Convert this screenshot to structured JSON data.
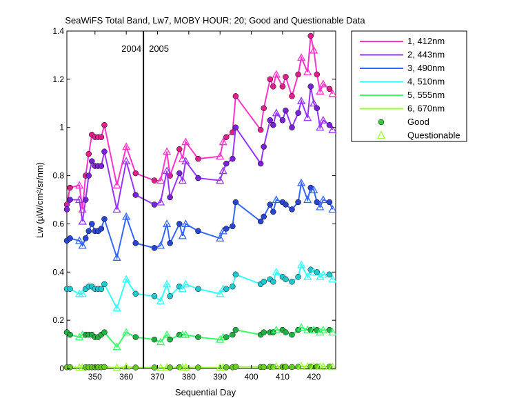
{
  "chart_data": {
    "type": "line",
    "title": "SeaWiFS Total Band,  Lw7, MOBY HOUR: 20;  Good and Questionable Data",
    "xlabel": "Sequential Day",
    "ylabel": "Lw (µW/cm²/sr/nm)",
    "xlim": [
      341,
      427
    ],
    "ylim": [
      0,
      1.4
    ],
    "xticks": [
      350,
      360,
      370,
      380,
      390,
      400,
      410,
      420
    ],
    "yticks": [
      0,
      0.2,
      0.4,
      0.6,
      0.8,
      1,
      1.2,
      1.4
    ],
    "ytick_labels": [
      "0",
      "0.2",
      "0.4",
      "0.6",
      "0.8",
      "1",
      "1.2",
      "1.4"
    ],
    "grid": false,
    "legend_position": "outside-right",
    "year_divider": {
      "x": 365.5,
      "labels": [
        "2004",
        "2005"
      ]
    },
    "legend_markers": {
      "good": "Good",
      "questionable": "Questionable",
      "good_color": "#33cc33",
      "questionable_color": "#99ff33"
    },
    "series": [
      {
        "name": "1, 412nm",
        "color": "#ff33cc",
        "marker_color": "#e0208a",
        "x": [
          341,
          342,
          345,
          346,
          347,
          348,
          349,
          350,
          351,
          352,
          353,
          357,
          360,
          363,
          369,
          371,
          373,
          374,
          377,
          378,
          379,
          383,
          390,
          391,
          392,
          394,
          395,
          403,
          404,
          406,
          407,
          408,
          410,
          411,
          413,
          415,
          416,
          418,
          419,
          420,
          421,
          422,
          423,
          425,
          426
        ],
        "y": [
          0.68,
          0.75,
          0.76,
          0.66,
          0.8,
          0.89,
          0.97,
          0.96,
          0.96,
          0.96,
          1.01,
          0.76,
          0.92,
          0.81,
          0.78,
          0.78,
          0.9,
          0.8,
          0.91,
          0.87,
          0.94,
          0.87,
          0.88,
          0.94,
          0.96,
          0.98,
          1.13,
          0.99,
          1.08,
          1.2,
          1.17,
          1.22,
          1.17,
          1.21,
          1.13,
          1.22,
          1.29,
          1.23,
          1.38,
          1.32,
          1.22,
          1.15,
          1.18,
          1.16,
          1.14
        ],
        "q": [
          0,
          0,
          1,
          1,
          0,
          0,
          0,
          0,
          0,
          0,
          0,
          1,
          1,
          0,
          0,
          1,
          1,
          0,
          0,
          1,
          1,
          0,
          1,
          1,
          0,
          0,
          0,
          0,
          0,
          0,
          0,
          1,
          0,
          0,
          0,
          0,
          1,
          1,
          0,
          1,
          0,
          1,
          1,
          0,
          1
        ]
      },
      {
        "name": "2, 443nm",
        "color": "#9933ff",
        "marker_color": "#7a22d8",
        "x": [
          341,
          342,
          345,
          346,
          347,
          348,
          349,
          350,
          351,
          352,
          353,
          357,
          360,
          363,
          369,
          371,
          373,
          374,
          377,
          378,
          379,
          383,
          390,
          391,
          392,
          394,
          395,
          403,
          404,
          406,
          407,
          408,
          410,
          411,
          413,
          415,
          416,
          418,
          419,
          420,
          421,
          422,
          423,
          425,
          426
        ],
        "y": [
          0.66,
          0.7,
          0.7,
          0.61,
          0.7,
          0.8,
          0.86,
          0.84,
          0.84,
          0.84,
          0.9,
          0.66,
          0.86,
          0.72,
          0.68,
          0.69,
          0.82,
          0.71,
          0.81,
          0.78,
          0.86,
          0.79,
          0.78,
          0.82,
          0.85,
          0.87,
          1.0,
          0.85,
          0.92,
          1.03,
          1.01,
          1.06,
          1.03,
          1.07,
          1.0,
          1.06,
          1.11,
          1.04,
          1.17,
          1.1,
          1.08,
          1.0,
          1.03,
          1.01,
          0.99
        ],
        "q": [
          0,
          0,
          1,
          1,
          0,
          0,
          0,
          0,
          0,
          0,
          0,
          1,
          1,
          0,
          0,
          1,
          1,
          0,
          0,
          1,
          1,
          0,
          1,
          1,
          0,
          0,
          0,
          0,
          0,
          0,
          0,
          1,
          0,
          0,
          0,
          0,
          1,
          1,
          0,
          1,
          0,
          1,
          1,
          0,
          1
        ]
      },
      {
        "name": "3, 490nm",
        "color": "#3366ff",
        "marker_color": "#2a45d0",
        "x": [
          341,
          342,
          345,
          346,
          347,
          348,
          349,
          350,
          351,
          352,
          353,
          357,
          360,
          363,
          369,
          371,
          373,
          374,
          377,
          378,
          379,
          383,
          390,
          391,
          392,
          394,
          395,
          403,
          404,
          406,
          407,
          408,
          410,
          411,
          413,
          415,
          416,
          418,
          419,
          420,
          421,
          422,
          423,
          425,
          426
        ],
        "y": [
          0.53,
          0.54,
          0.53,
          0.51,
          0.54,
          0.57,
          0.6,
          0.57,
          0.57,
          0.58,
          0.62,
          0.46,
          0.63,
          0.52,
          0.5,
          0.51,
          0.6,
          0.52,
          0.6,
          0.55,
          0.6,
          0.57,
          0.54,
          0.57,
          0.58,
          0.59,
          0.69,
          0.61,
          0.63,
          0.68,
          0.65,
          0.7,
          0.69,
          0.68,
          0.66,
          0.69,
          0.77,
          0.7,
          0.75,
          0.74,
          0.69,
          0.67,
          0.7,
          0.69,
          0.66
        ],
        "q": [
          0,
          0,
          1,
          1,
          0,
          0,
          0,
          0,
          0,
          0,
          0,
          1,
          1,
          0,
          0,
          1,
          1,
          0,
          0,
          1,
          1,
          0,
          1,
          1,
          0,
          0,
          0,
          0,
          0,
          0,
          0,
          1,
          0,
          0,
          0,
          0,
          1,
          1,
          0,
          1,
          0,
          1,
          1,
          0,
          1
        ]
      },
      {
        "name": "4, 510nm",
        "color": "#33ffff",
        "marker_color": "#22c8d0",
        "x": [
          341,
          342,
          345,
          346,
          347,
          348,
          349,
          350,
          351,
          352,
          353,
          357,
          360,
          363,
          369,
          371,
          373,
          374,
          377,
          378,
          379,
          383,
          390,
          391,
          392,
          394,
          395,
          403,
          404,
          406,
          407,
          408,
          410,
          411,
          413,
          415,
          416,
          418,
          419,
          420,
          421,
          422,
          423,
          425,
          426
        ],
        "y": [
          0.33,
          0.33,
          0.31,
          0.31,
          0.33,
          0.34,
          0.34,
          0.33,
          0.33,
          0.33,
          0.35,
          0.25,
          0.37,
          0.31,
          0.3,
          0.28,
          0.35,
          0.3,
          0.34,
          0.33,
          0.35,
          0.33,
          0.31,
          0.33,
          0.33,
          0.34,
          0.39,
          0.35,
          0.36,
          0.37,
          0.36,
          0.4,
          0.38,
          0.37,
          0.36,
          0.38,
          0.43,
          0.38,
          0.41,
          0.4,
          0.4,
          0.38,
          0.39,
          0.39,
          0.37
        ],
        "q": [
          0,
          0,
          1,
          1,
          0,
          0,
          0,
          0,
          0,
          0,
          0,
          1,
          1,
          0,
          0,
          1,
          1,
          0,
          0,
          1,
          1,
          0,
          1,
          1,
          0,
          0,
          0,
          0,
          0,
          0,
          0,
          1,
          0,
          0,
          0,
          0,
          1,
          1,
          0,
          1,
          0,
          1,
          1,
          0,
          1
        ]
      },
      {
        "name": "5, 555nm",
        "color": "#33ff66",
        "marker_color": "#22b044",
        "x": [
          341,
          342,
          345,
          346,
          347,
          348,
          349,
          350,
          351,
          352,
          353,
          357,
          360,
          363,
          369,
          371,
          373,
          374,
          377,
          378,
          379,
          383,
          390,
          391,
          392,
          394,
          395,
          403,
          404,
          406,
          407,
          408,
          410,
          411,
          413,
          415,
          416,
          418,
          419,
          420,
          421,
          422,
          423,
          425,
          426
        ],
        "y": [
          0.15,
          0.14,
          0.13,
          0.14,
          0.14,
          0.14,
          0.14,
          0.13,
          0.13,
          0.14,
          0.15,
          0.09,
          0.15,
          0.13,
          0.12,
          0.11,
          0.14,
          0.12,
          0.14,
          0.14,
          0.14,
          0.13,
          0.12,
          0.13,
          0.13,
          0.14,
          0.16,
          0.14,
          0.15,
          0.15,
          0.15,
          0.16,
          0.16,
          0.15,
          0.14,
          0.16,
          0.17,
          0.16,
          0.16,
          0.16,
          0.16,
          0.15,
          0.16,
          0.16,
          0.15
        ],
        "q": [
          0,
          0,
          1,
          1,
          0,
          0,
          0,
          0,
          0,
          0,
          0,
          1,
          1,
          0,
          0,
          1,
          1,
          0,
          0,
          1,
          1,
          0,
          1,
          1,
          0,
          0,
          0,
          0,
          0,
          0,
          0,
          1,
          0,
          0,
          0,
          0,
          1,
          1,
          0,
          1,
          0,
          1,
          1,
          0,
          1
        ]
      },
      {
        "name": "6, 670nm",
        "color": "#99ff33",
        "marker_color": "#66cc22",
        "x": [
          341,
          342,
          345,
          346,
          347,
          348,
          349,
          350,
          351,
          352,
          353,
          357,
          360,
          363,
          369,
          371,
          373,
          374,
          377,
          378,
          379,
          383,
          390,
          391,
          392,
          394,
          395,
          403,
          404,
          406,
          407,
          408,
          410,
          411,
          413,
          415,
          416,
          418,
          419,
          420,
          421,
          422,
          423,
          425,
          426
        ],
        "y": [
          0.005,
          0.005,
          0.004,
          0.004,
          0.005,
          0.005,
          0.005,
          0.005,
          0.005,
          0.005,
          0.006,
          0.003,
          0.007,
          0.004,
          0.004,
          0.003,
          0.005,
          0.004,
          0.005,
          0.005,
          0.005,
          0.004,
          0.004,
          0.005,
          0.005,
          0.005,
          0.007,
          0.006,
          0.006,
          0.007,
          0.006,
          0.008,
          0.007,
          0.007,
          0.006,
          0.007,
          0.009,
          0.008,
          0.008,
          0.008,
          0.008,
          0.007,
          0.008,
          0.008,
          0.007
        ],
        "q": [
          0,
          0,
          1,
          1,
          0,
          0,
          0,
          0,
          0,
          0,
          0,
          1,
          1,
          0,
          0,
          1,
          1,
          0,
          0,
          1,
          1,
          0,
          1,
          1,
          0,
          0,
          0,
          0,
          0,
          0,
          0,
          1,
          0,
          0,
          0,
          0,
          1,
          1,
          0,
          1,
          0,
          1,
          1,
          0,
          1
        ]
      }
    ]
  }
}
